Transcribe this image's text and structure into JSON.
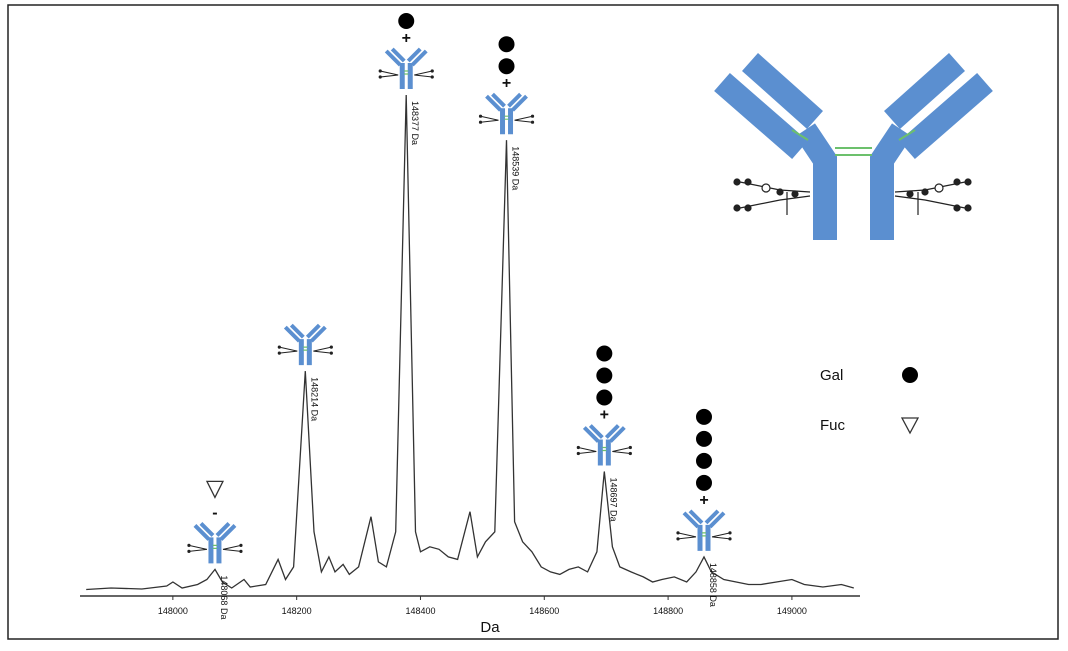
{
  "chart_data": {
    "type": "line",
    "x_label": "Da",
    "xlim": [
      147850,
      149110
    ],
    "ylim": [
      0,
      100
    ],
    "xticks": [
      148000,
      148200,
      148400,
      148600,
      148800,
      149000
    ],
    "series": [
      {
        "color": "#333333",
        "x": [
          147860,
          147900,
          147950,
          147990,
          148000,
          148015,
          148040,
          148055,
          148068,
          148080,
          148095,
          148115,
          148125,
          148150,
          148170,
          148182,
          148195,
          148214,
          148228,
          148240,
          148252,
          148262,
          148275,
          148285,
          148300,
          148320,
          148332,
          148345,
          148360,
          148377,
          148392,
          148400,
          148415,
          148430,
          148445,
          148460,
          148480,
          148492,
          148505,
          148520,
          148539,
          148552,
          148565,
          148580,
          148595,
          148610,
          148625,
          148640,
          148655,
          148670,
          148685,
          148697,
          148710,
          148722,
          148740,
          148760,
          148775,
          148790,
          148810,
          148830,
          148845,
          148858,
          148870,
          148890,
          148910,
          148930,
          148950,
          148975,
          149000,
          149020,
          149050,
          149080,
          149100
        ],
        "values": [
          0.5,
          0.8,
          0.6,
          1.2,
          2,
          0.8,
          1.5,
          2.5,
          4.5,
          2,
          0.8,
          2.5,
          1,
          1.5,
          6.5,
          2.5,
          5,
          44,
          12,
          4,
          7,
          4,
          5.5,
          3.5,
          5,
          15,
          6,
          5,
          12,
          99,
          12,
          8,
          9,
          8.5,
          7,
          6.5,
          16,
          7,
          10,
          12,
          90,
          14,
          10,
          8,
          5,
          4,
          3.5,
          4.5,
          5,
          4,
          8,
          24,
          9,
          5,
          4,
          3,
          2,
          2.5,
          3,
          2,
          4,
          7,
          4,
          2.5,
          2,
          1.5,
          1.5,
          2,
          2.5,
          1.5,
          1,
          1.5,
          0.8
        ]
      }
    ],
    "peaks": [
      {
        "x": 148068,
        "label": "148068 Da",
        "gal": 0,
        "sign": "-",
        "fuc": true
      },
      {
        "x": 148214,
        "label": "148214 Da",
        "gal": 0,
        "fuc": false
      },
      {
        "x": 148377,
        "label": "148377 Da",
        "gal": 1,
        "sign": "+",
        "fuc": false
      },
      {
        "x": 148539,
        "label": "148539 Da",
        "gal": 2,
        "sign": "+",
        "fuc": false
      },
      {
        "x": 148697,
        "label": "148697 Da",
        "gal": 3,
        "sign": "+",
        "fuc": false
      },
      {
        "x": 148858,
        "label": "148858 Da",
        "gal": 4,
        "sign": "+",
        "fuc": false
      }
    ],
    "legend": [
      {
        "name": "Gal",
        "marker": "circle"
      },
      {
        "name": "Fuc",
        "marker": "triangle"
      }
    ]
  }
}
